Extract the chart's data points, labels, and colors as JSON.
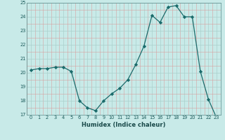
{
  "x": [
    0,
    1,
    2,
    3,
    4,
    5,
    6,
    7,
    8,
    9,
    10,
    11,
    12,
    13,
    14,
    15,
    16,
    17,
    18,
    19,
    20,
    21,
    22,
    23
  ],
  "y": [
    20.2,
    20.3,
    20.3,
    20.4,
    20.4,
    20.1,
    18.0,
    17.5,
    17.3,
    18.0,
    18.5,
    18.9,
    19.5,
    20.6,
    21.9,
    24.1,
    23.6,
    24.7,
    24.8,
    24.0,
    24.0,
    20.1,
    18.1,
    16.8
  ],
  "title": "",
  "xlabel": "Humidex (Indice chaleur)",
  "ylabel": "",
  "ylim": [
    17,
    25
  ],
  "yticks": [
    17,
    18,
    19,
    20,
    21,
    22,
    23,
    24,
    25
  ],
  "xticks": [
    0,
    1,
    2,
    3,
    4,
    5,
    6,
    7,
    8,
    9,
    10,
    11,
    12,
    13,
    14,
    15,
    16,
    17,
    18,
    19,
    20,
    21,
    22,
    23
  ],
  "line_color": "#1a6b6b",
  "marker_color": "#1a6b6b",
  "bg_color": "#c8eae8",
  "grid_major_color": "#aacfcc",
  "grid_minor_color": "#bcdeda"
}
